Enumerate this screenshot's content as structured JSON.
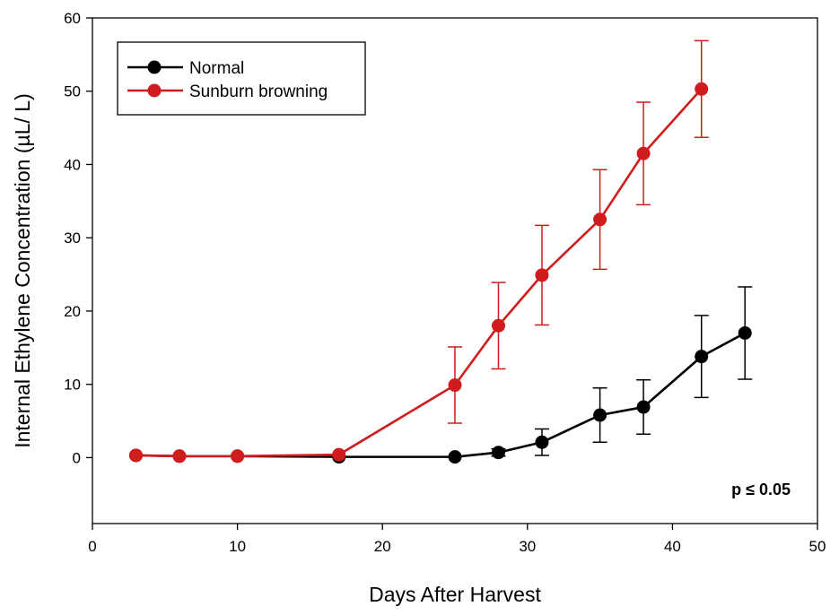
{
  "chart_data": {
    "type": "line",
    "title": "",
    "xlabel": "Days After Harvest",
    "ylabel": "Internal Ethylene Concentration (µL/ L)",
    "xlim": [
      0,
      50
    ],
    "ylim": [
      -9,
      60
    ],
    "xticks": [
      0,
      10,
      20,
      30,
      40,
      50
    ],
    "yticks": [
      0,
      10,
      20,
      30,
      40,
      50,
      60
    ],
    "grid": false,
    "legend_position": "top-left",
    "annotation": "p ≤ 0.05",
    "series": [
      {
        "name": "Normal",
        "color": "#000000",
        "x": [
          3,
          6,
          10,
          17,
          25,
          28,
          31,
          35,
          38,
          42,
          45
        ],
        "y": [
          0.3,
          0.2,
          0.2,
          0.1,
          0.1,
          0.7,
          2.1,
          5.8,
          6.9,
          13.8,
          17.0
        ],
        "err": [
          0,
          0,
          0,
          0,
          0,
          0.5,
          1.8,
          3.7,
          3.7,
          5.6,
          6.3
        ]
      },
      {
        "name": "Sunburn browning",
        "color": "#d01c1c",
        "x": [
          3,
          6,
          10,
          17,
          25,
          28,
          31,
          35,
          38,
          42
        ],
        "y": [
          0.3,
          0.2,
          0.2,
          0.4,
          9.9,
          18.0,
          24.9,
          32.5,
          41.5,
          50.3
        ],
        "err": [
          0,
          0,
          0,
          0,
          5.2,
          5.9,
          6.8,
          6.8,
          7.0,
          6.6
        ]
      }
    ]
  }
}
